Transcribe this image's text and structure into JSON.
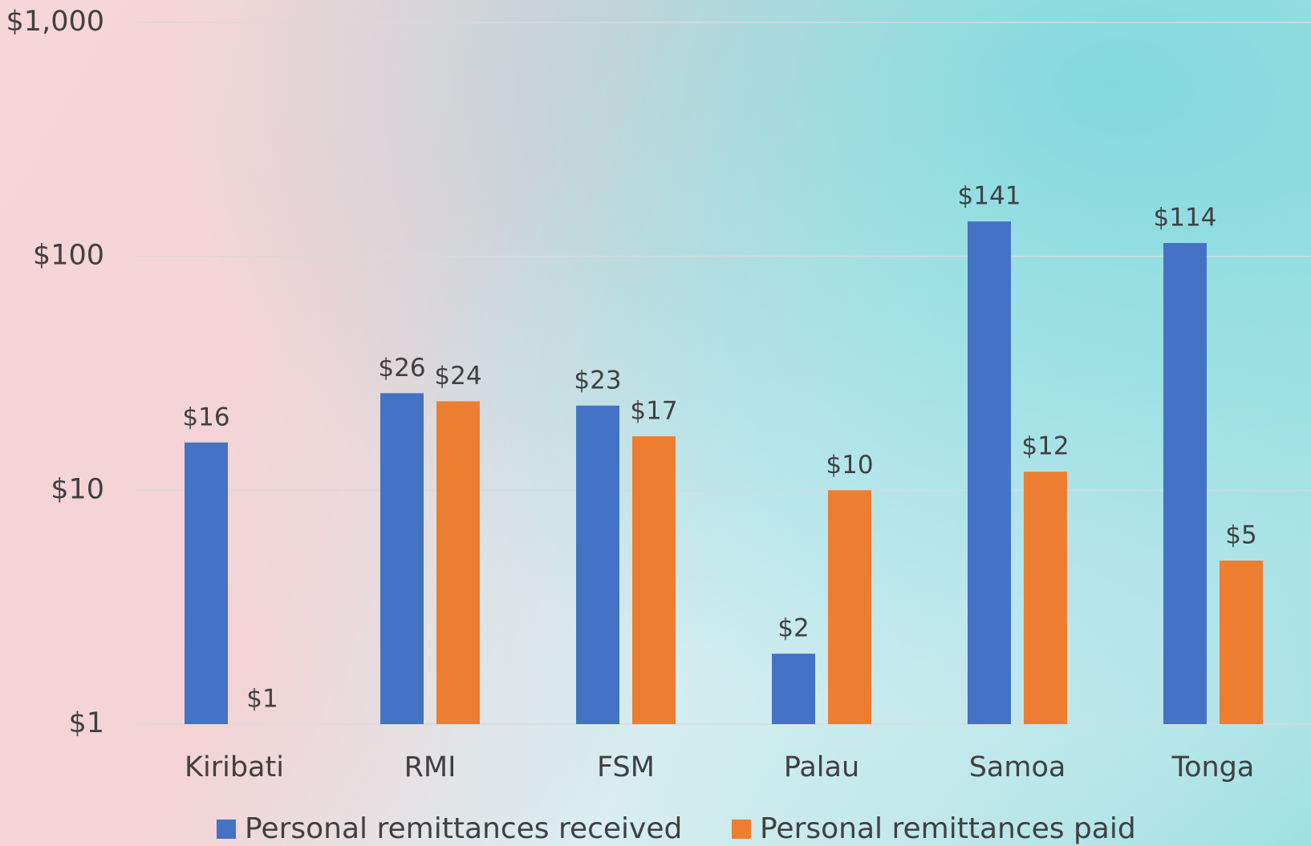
{
  "chart_data": {
    "type": "bar",
    "categories": [
      "Kiribati",
      "RMI",
      "FSM",
      "Palau",
      "Samoa",
      "Tonga"
    ],
    "series": [
      {
        "name": "Personal remittances received",
        "color": "#4472c4",
        "values": [
          16,
          26,
          23,
          2,
          141,
          114
        ],
        "value_labels": [
          "$16",
          "$26",
          "$23",
          "$2",
          "$141",
          "$114"
        ]
      },
      {
        "name": "Personal remittances paid",
        "color": "#ed7d31",
        "values": [
          1,
          24,
          17,
          10,
          12,
          5
        ],
        "value_labels": [
          "$1",
          "$24",
          "$17",
          "$10",
          "$12",
          "$5"
        ]
      }
    ],
    "ylim": [
      1,
      1000
    ],
    "log_scale": true,
    "yticks": [
      {
        "value": 1,
        "label": "$1"
      },
      {
        "value": 10,
        "label": "$10"
      },
      {
        "value": 100,
        "label": "$100"
      },
      {
        "value": 1000,
        "label": "$1,000"
      }
    ],
    "grid": true,
    "legend": "bottom"
  }
}
